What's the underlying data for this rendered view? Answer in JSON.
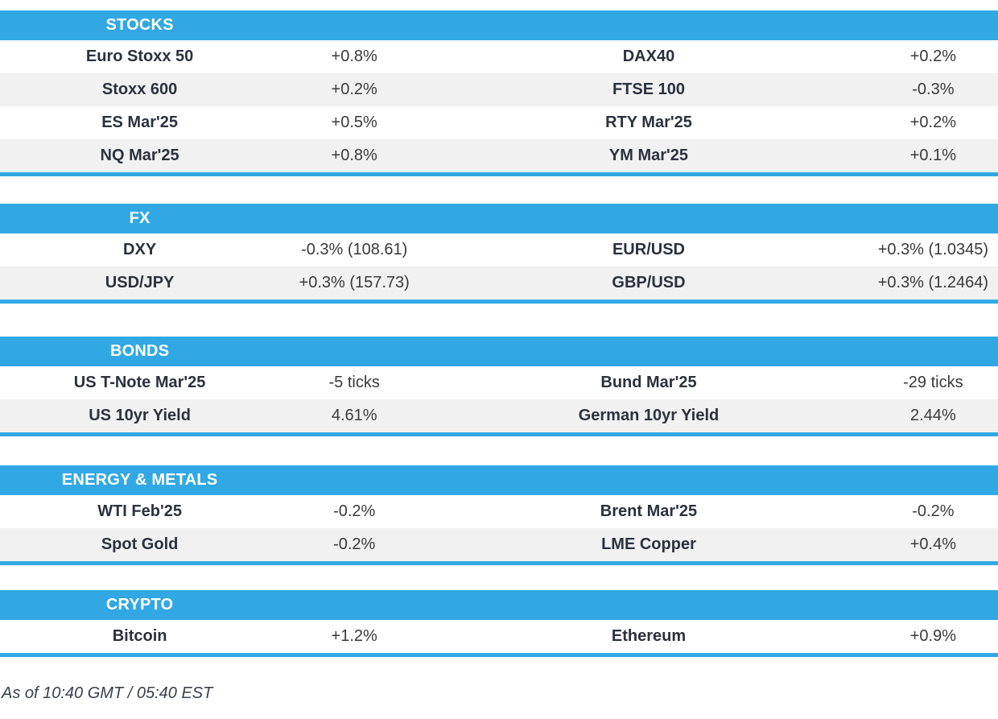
{
  "colors": {
    "accent": "#31a8e4",
    "alt_row": "#f1f1f1",
    "label_text": "#2b313d",
    "value_text": "#3a3a3a"
  },
  "sections": [
    {
      "title": "STOCKS",
      "rows": [
        {
          "l1": "Euro Stoxx 50",
          "v1": "+0.8%",
          "l2": "DAX40",
          "v2": "+0.2%"
        },
        {
          "l1": "Stoxx 600",
          "v1": "+0.2%",
          "l2": "FTSE 100",
          "v2": "-0.3%"
        },
        {
          "l1": "ES Mar'25",
          "v1": "+0.5%",
          "l2": "RTY Mar'25",
          "v2": "+0.2%"
        },
        {
          "l1": "NQ Mar'25",
          "v1": "+0.8%",
          "l2": "YM Mar'25",
          "v2": "+0.1%"
        }
      ]
    },
    {
      "title": "FX",
      "rows": [
        {
          "l1": "DXY",
          "v1": "-0.3% (108.61)",
          "l2": "EUR/USD",
          "v2": "+0.3% (1.0345)"
        },
        {
          "l1": "USD/JPY",
          "v1": "+0.3% (157.73)",
          "l2": "GBP/USD",
          "v2": "+0.3% (1.2464)"
        }
      ]
    },
    {
      "title": "BONDS",
      "rows": [
        {
          "l1": "US T-Note Mar'25",
          "v1": "-5 ticks",
          "l2": "Bund Mar'25",
          "v2": "-29 ticks"
        },
        {
          "l1": "US 10yr Yield",
          "v1": "4.61%",
          "l2": "German 10yr Yield",
          "v2": "2.44%"
        }
      ]
    },
    {
      "title": "ENERGY & METALS",
      "rows": [
        {
          "l1": "WTI Feb'25",
          "v1": "-0.2%",
          "l2": "Brent Mar'25",
          "v2": "-0.2%"
        },
        {
          "l1": "Spot Gold",
          "v1": "-0.2%",
          "l2": "LME Copper",
          "v2": "+0.4%"
        }
      ]
    },
    {
      "title": "CRYPTO",
      "rows": [
        {
          "l1": "Bitcoin",
          "v1": "+1.2%",
          "l2": "Ethereum",
          "v2": "+0.9%"
        }
      ]
    }
  ],
  "footer": {
    "timestamp": "As of 10:40 GMT / 05:40 EST"
  }
}
